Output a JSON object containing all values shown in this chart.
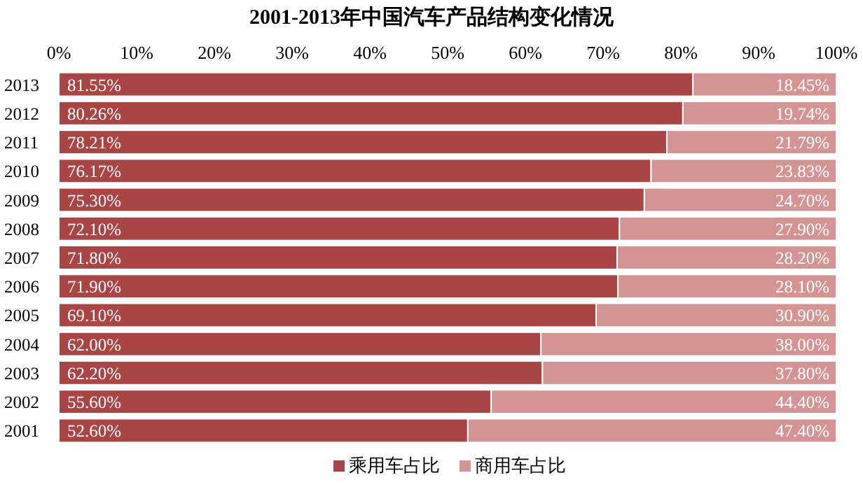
{
  "chart_data": {
    "type": "bar",
    "orientation": "horizontal",
    "stacked": true,
    "title": "2001-2013年中国汽车产品结构变化情况",
    "categories": [
      "2013",
      "2012",
      "2011",
      "2010",
      "2009",
      "2008",
      "2007",
      "2006",
      "2005",
      "2004",
      "2003",
      "2002",
      "2001"
    ],
    "series": [
      {
        "name": "乘用车占比",
        "color": "#a94544",
        "values": [
          81.55,
          80.26,
          78.21,
          76.17,
          75.3,
          72.1,
          71.8,
          71.9,
          69.1,
          62.0,
          62.2,
          55.6,
          52.6
        ],
        "value_labels": [
          "81.55%",
          "80.26%",
          "78.21%",
          "76.17%",
          "75.30%",
          "72.10%",
          "71.80%",
          "71.90%",
          "69.10%",
          "62.00%",
          "62.20%",
          "55.60%",
          "52.60%"
        ]
      },
      {
        "name": "商用车占比",
        "color": "#d49494",
        "values": [
          18.45,
          19.74,
          21.79,
          23.83,
          24.7,
          27.9,
          28.2,
          28.1,
          30.9,
          38.0,
          37.8,
          44.4,
          47.4
        ],
        "value_labels": [
          "18.45%",
          "19.74%",
          "21.79%",
          "23.83%",
          "24.70%",
          "27.90%",
          "28.20%",
          "28.10%",
          "30.90%",
          "38.00%",
          "37.80%",
          "44.40%",
          "47.40%"
        ]
      }
    ],
    "xlim": [
      0,
      100
    ],
    "xticks": [
      {
        "value": 0,
        "label": "0%"
      },
      {
        "value": 10,
        "label": "10%"
      },
      {
        "value": 20,
        "label": "20%"
      },
      {
        "value": 30,
        "label": "30%"
      },
      {
        "value": 40,
        "label": "40%"
      },
      {
        "value": 50,
        "label": "50%"
      },
      {
        "value": 60,
        "label": "60%"
      },
      {
        "value": 70,
        "label": "70%"
      },
      {
        "value": 80,
        "label": "80%"
      },
      {
        "value": 90,
        "label": "90%"
      },
      {
        "value": 100,
        "label": "100%"
      }
    ],
    "legend": "bottom"
  }
}
